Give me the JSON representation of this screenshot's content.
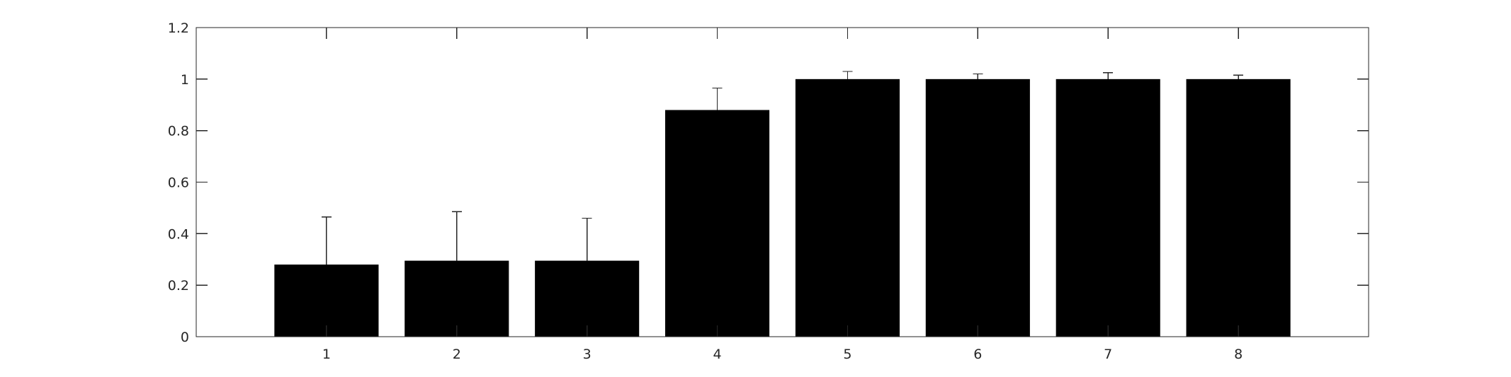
{
  "chart_data": {
    "type": "bar",
    "title": "",
    "xlabel": "",
    "ylabel": "",
    "categories": [
      "1",
      "2",
      "3",
      "4",
      "5",
      "6",
      "7",
      "8"
    ],
    "values": [
      0.28,
      0.295,
      0.295,
      0.88,
      1.0,
      1.0,
      1.0,
      1.0
    ],
    "error_upper": [
      0.185,
      0.19,
      0.165,
      0.085,
      0.03,
      0.02,
      0.025,
      0.015
    ],
    "xlim": [
      0,
      9
    ],
    "ylim": [
      0,
      1.2
    ],
    "yticks": [
      0,
      0.2,
      0.4,
      0.6,
      0.8,
      1,
      1.2
    ],
    "ytick_labels": [
      "0",
      "0.2",
      "0.4",
      "0.6",
      "0.8",
      "1",
      "1.2"
    ],
    "grid": false,
    "legend": "none",
    "colors": {
      "bar": "#000000",
      "axis": "#262626",
      "background": "#ffffff"
    }
  }
}
